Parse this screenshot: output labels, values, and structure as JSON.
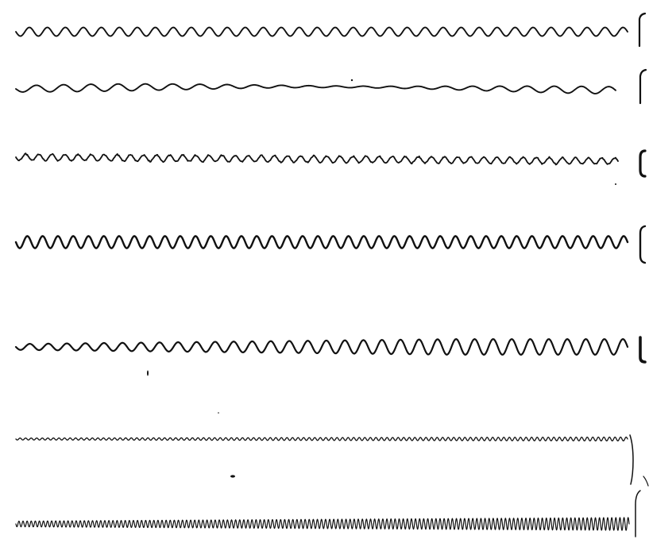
{
  "figure": {
    "traces": [
      {
        "id": "trace-1",
        "cycles": 34,
        "amplitude": 1.0,
        "color": "#111111"
      },
      {
        "id": "trace-2",
        "cycles": 22,
        "amplitude": 0.7,
        "color": "#111111"
      },
      {
        "id": "trace-3",
        "cycles": 46,
        "amplitude": 0.9,
        "color": "#111111"
      },
      {
        "id": "trace-4",
        "cycles": 40,
        "amplitude": 1.4,
        "color": "#111111"
      },
      {
        "id": "trace-5",
        "cycles": 33,
        "amplitude": 1.5,
        "color": "#111111"
      },
      {
        "id": "trace-6",
        "cycles": 110,
        "amplitude": 0.4,
        "color": "#111111"
      },
      {
        "id": "trace-7",
        "cycles": 150,
        "amplitude": 1.3,
        "color": "#111111"
      }
    ]
  }
}
